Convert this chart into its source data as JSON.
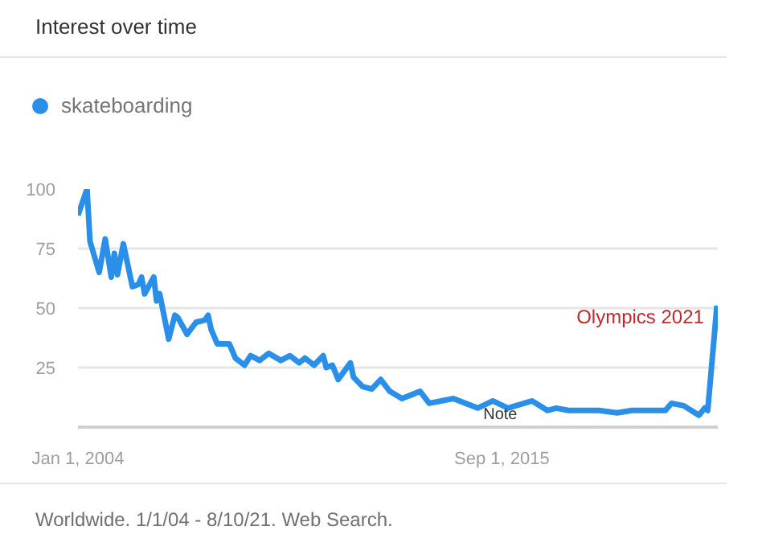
{
  "chart_data": {
    "type": "line",
    "title": "Interest over time",
    "x": [
      "2004-01",
      "2004-04",
      "2004-05",
      "2004-08",
      "2004-10",
      "2004-12",
      "2005-01",
      "2005-02",
      "2005-04",
      "2005-07",
      "2005-09",
      "2005-10",
      "2005-11",
      "2006-02",
      "2006-03",
      "2006-04",
      "2006-07",
      "2006-09",
      "2006-10",
      "2007-01",
      "2007-04",
      "2007-07",
      "2007-08",
      "2007-09",
      "2007-11",
      "2008-03",
      "2008-05",
      "2008-08",
      "2008-10",
      "2009-01",
      "2009-04",
      "2009-08",
      "2009-11",
      "2010-02",
      "2010-04",
      "2010-07",
      "2010-10",
      "2010-11",
      "2011-01",
      "2011-03",
      "2011-07",
      "2011-08",
      "2011-11",
      "2012-02",
      "2012-05",
      "2012-08",
      "2012-12",
      "2013-06",
      "2013-09",
      "2014-05",
      "2015-01",
      "2015-06",
      "2015-11",
      "2016-07",
      "2016-12",
      "2017-03",
      "2017-07",
      "2018-05",
      "2018-11",
      "2019-04",
      "2020-03",
      "2020-05",
      "2020-09",
      "2021-02",
      "2021-04",
      "2021-05",
      "2021-08"
    ],
    "series": [
      {
        "name": "skateboarding",
        "color": "#2a8fe8",
        "values": [
          89,
          100,
          78,
          65,
          79,
          63,
          73,
          64,
          77,
          59,
          60,
          63,
          56,
          63,
          53,
          56,
          37,
          47,
          46,
          39,
          44,
          45,
          47,
          41,
          35,
          35,
          29,
          26,
          30,
          28,
          31,
          28,
          30,
          27,
          29,
          26,
          30,
          25,
          26,
          20,
          27,
          21,
          17,
          16,
          20,
          15,
          12,
          15,
          10,
          12,
          8,
          11,
          8,
          11,
          7,
          8,
          7,
          7,
          6,
          7,
          7,
          10,
          9,
          5,
          8,
          7,
          51
        ]
      }
    ],
    "xlim": [
      "2004-01-01",
      "2021-08-10"
    ],
    "xticks": [
      {
        "value": "2004-01-01",
        "label": "Jan 1, 2004"
      },
      {
        "value": "2015-09-01",
        "label": "Sep 1, 2015"
      }
    ],
    "ylim": [
      0,
      100
    ],
    "yticks": [
      25,
      50,
      75,
      100
    ],
    "grid": "y",
    "legend": "top left",
    "marker": "none",
    "line_style": "solid",
    "annotations": [
      {
        "text": "Olympics 2021",
        "x": "2021-08",
        "y": 51
      },
      "Note",
      "Worldwide. 1/1/04 - 8/10/21. Web Search."
    ]
  }
}
